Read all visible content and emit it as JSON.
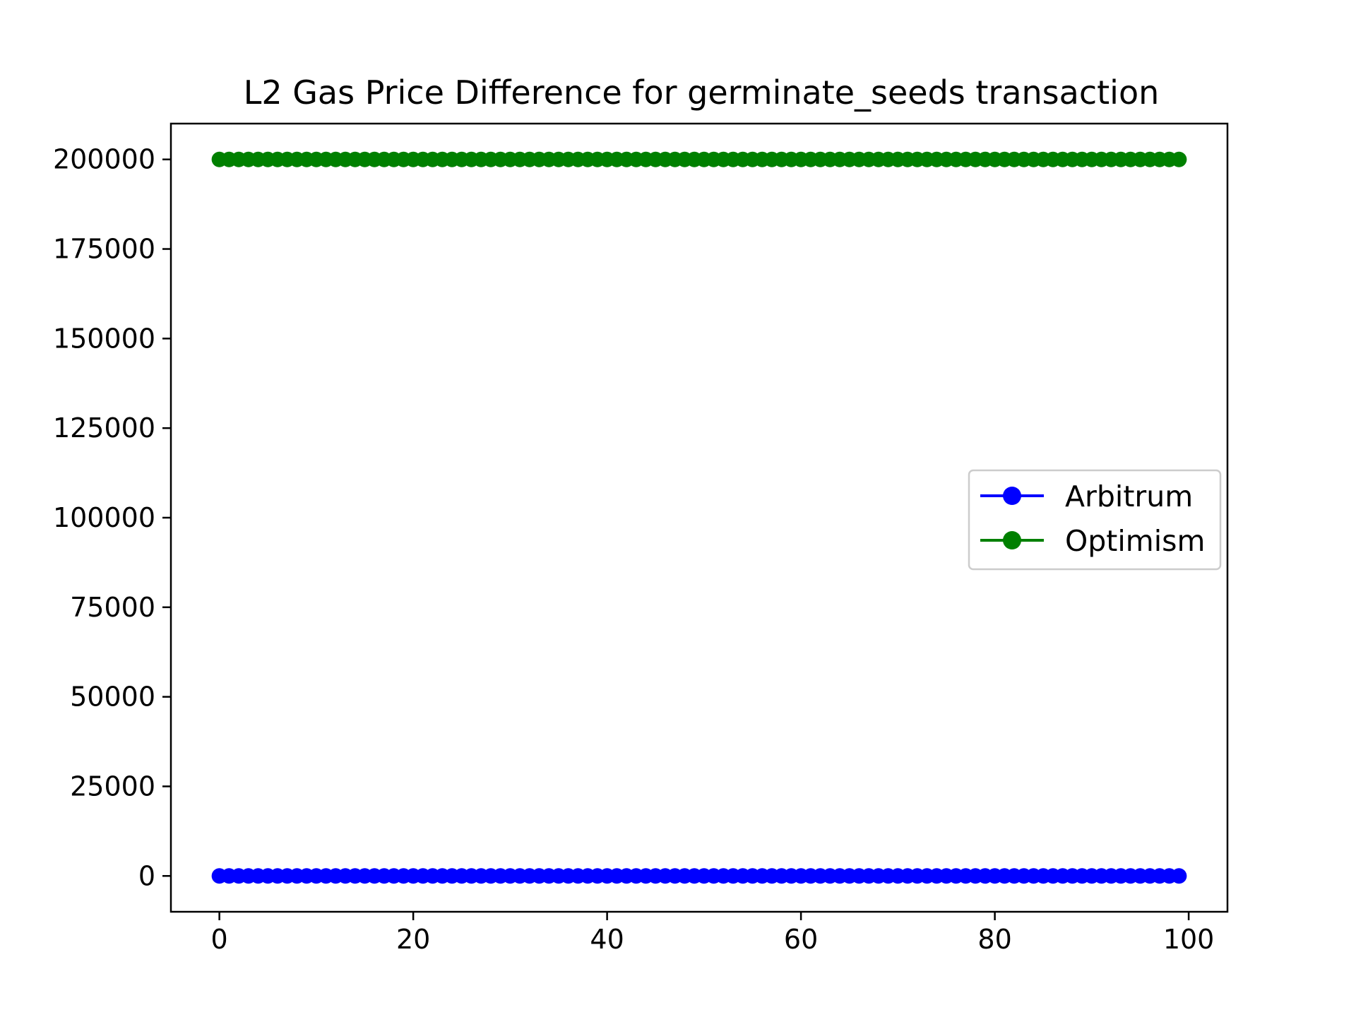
{
  "chart_data": {
    "type": "line",
    "title": "L2 Gas Price Difference for germinate_seeds transaction",
    "xlabel": "",
    "ylabel": "",
    "xlim": [
      -5,
      104
    ],
    "ylim": [
      -10000,
      210000
    ],
    "xticks": [
      0,
      20,
      40,
      60,
      80,
      100
    ],
    "yticks": [
      0,
      25000,
      50000,
      75000,
      100000,
      125000,
      150000,
      175000,
      200000
    ],
    "xtick_labels": [
      "0",
      "20",
      "40",
      "60",
      "80",
      "100"
    ],
    "ytick_labels": [
      "0",
      "25000",
      "50000",
      "75000",
      "100000",
      "125000",
      "150000",
      "175000",
      "200000"
    ],
    "x_range": {
      "start": 0,
      "end": 99,
      "step": 1
    },
    "series": [
      {
        "name": "Arbitrum",
        "color": "#0000ff",
        "marker": "circle",
        "constant_value": 0
      },
      {
        "name": "Optimism",
        "color": "#008000",
        "marker": "circle",
        "constant_value": 200000
      }
    ],
    "legend": {
      "position": "center-right",
      "entries": [
        "Arbitrum",
        "Optimism"
      ]
    },
    "grid": false
  }
}
